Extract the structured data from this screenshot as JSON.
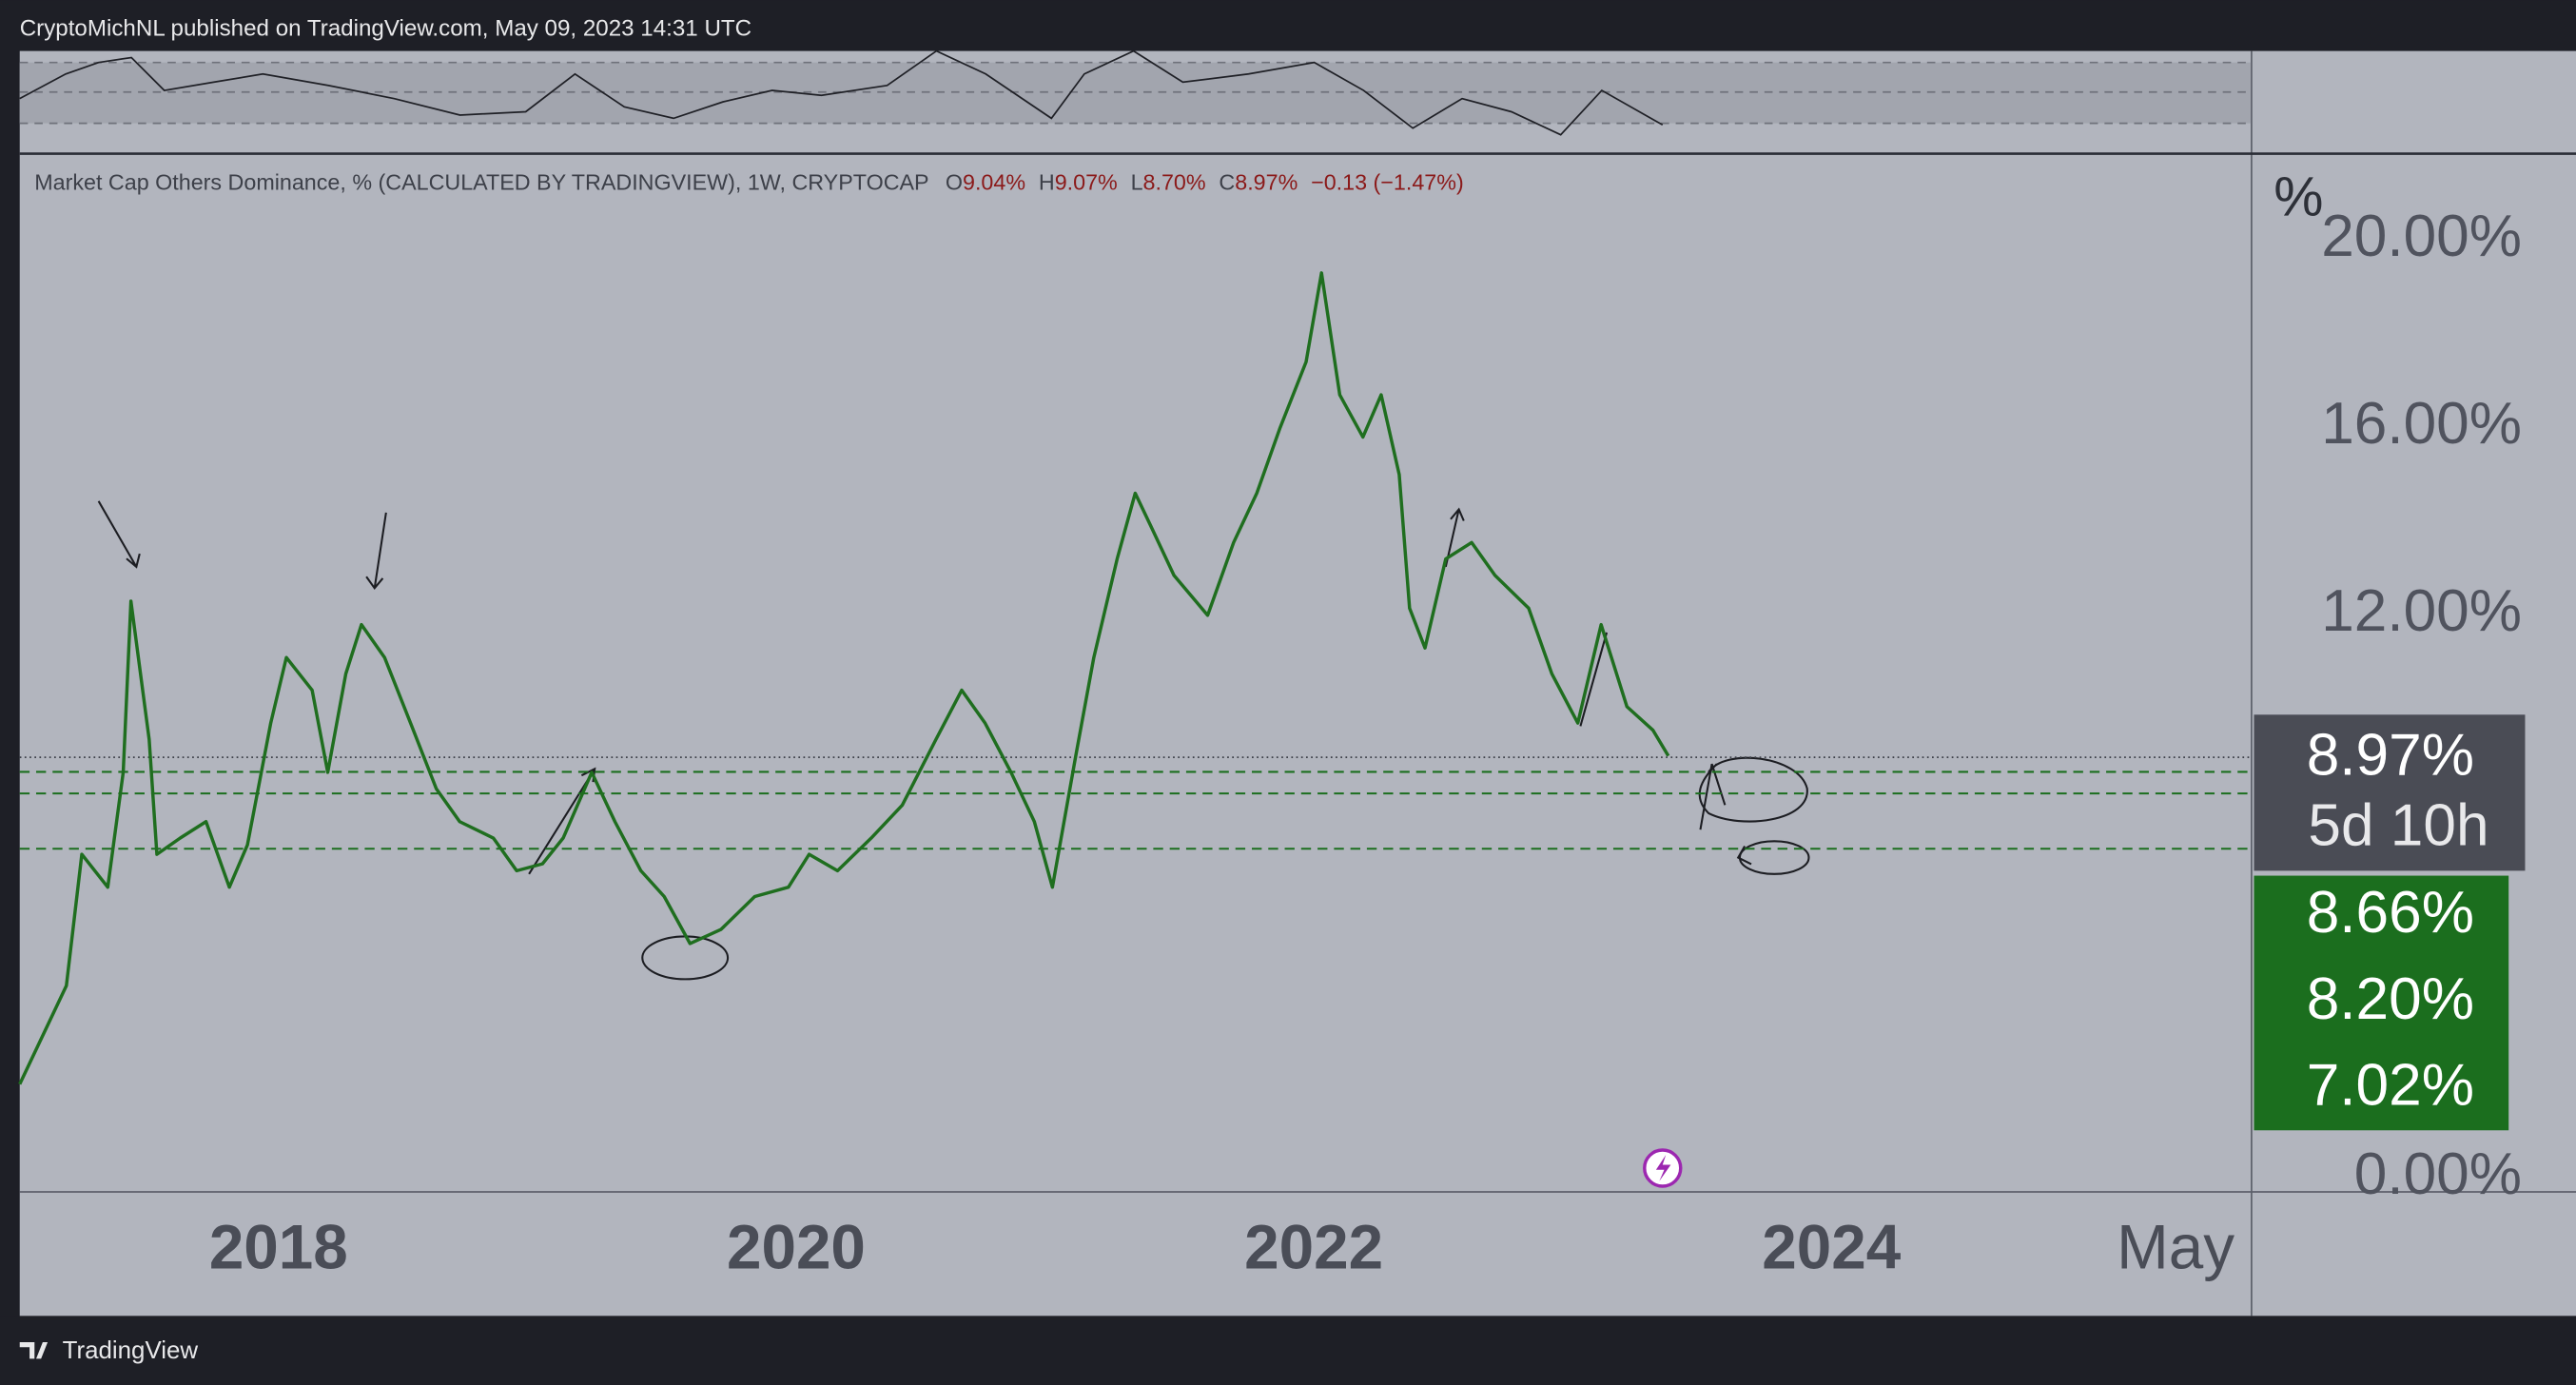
{
  "header": {
    "publisher": "CryptoMichNL published on TradingView.com, May 09, 2023 14:31 UTC"
  },
  "footer": {
    "brand": "TradingView"
  },
  "chart_data": {
    "type": "line",
    "title": "Market Cap Others Dominance, % (CALCULATED BY TRADINGVIEW), 1W, CRYPTOCAP",
    "ohlc": [
      {
        "key": "O",
        "value": "9.04%"
      },
      {
        "key": "H",
        "value": "9.07%"
      },
      {
        "key": "L",
        "value": "8.70%"
      },
      {
        "key": "C",
        "value": "8.97%"
      }
    ],
    "change": "−0.13 (−1.47%)",
    "unit": "%",
    "xlim": [
      2017,
      2025.62
    ],
    "xticks": [
      {
        "value": 2018,
        "label": "2018"
      },
      {
        "value": 2020,
        "label": "2020"
      },
      {
        "value": 2022,
        "label": "2022"
      },
      {
        "value": 2024,
        "label": "2024"
      },
      {
        "value": 2025.33,
        "label": "May"
      }
    ],
    "ylim": [
      -0.28,
      21.79
    ],
    "yticks": [
      {
        "value": 0,
        "label": "0.00%"
      },
      {
        "value": 12,
        "label": "12.00%"
      },
      {
        "value": 16,
        "label": "16.00%"
      },
      {
        "value": 20,
        "label": "20.00%"
      }
    ],
    "grid": false,
    "series": [
      {
        "name": "Others Dominance",
        "color": "#1f6e1f",
        "x": [
          2017.0,
          2017.18,
          2017.24,
          2017.34,
          2017.4,
          2017.43,
          2017.5,
          2017.53,
          2017.62,
          2017.72,
          2017.81,
          2017.88,
          2017.97,
          2018.03,
          2018.13,
          2018.19,
          2018.26,
          2018.32,
          2018.41,
          2018.51,
          2018.61,
          2018.7,
          2018.83,
          2018.92,
          2019.02,
          2019.1,
          2019.21,
          2019.3,
          2019.4,
          2019.49,
          2019.59,
          2019.71,
          2019.84,
          2019.97,
          2020.05,
          2020.16,
          2020.29,
          2020.41,
          2020.54,
          2020.64,
          2020.73,
          2020.83,
          2020.92,
          2020.99,
          2021.08,
          2021.15,
          2021.24,
          2021.31,
          2021.37,
          2021.46,
          2021.59,
          2021.69,
          2021.78,
          2021.87,
          2021.97,
          2022.03,
          2022.1,
          2022.19,
          2022.26,
          2022.33,
          2022.37,
          2022.43,
          2022.51,
          2022.61,
          2022.7,
          2022.83,
          2022.92,
          2023.02,
          2023.11,
          2023.21,
          2023.31,
          2023.37
        ],
        "values": [
          2.0,
          4.1,
          6.9,
          6.2,
          8.65,
          12.3,
          9.35,
          6.9,
          7.25,
          7.6,
          6.2,
          7.1,
          9.7,
          11.1,
          10.4,
          8.65,
          10.75,
          11.8,
          11.1,
          9.7,
          8.3,
          7.6,
          7.25,
          6.55,
          6.7,
          7.25,
          8.65,
          7.6,
          6.55,
          6.0,
          5.0,
          5.3,
          6.0,
          6.2,
          6.9,
          6.55,
          7.25,
          7.95,
          9.35,
          10.4,
          9.7,
          8.65,
          7.6,
          6.2,
          9.0,
          11.1,
          13.2,
          14.6,
          13.9,
          12.85,
          12.0,
          13.55,
          14.6,
          16.0,
          17.4,
          19.3,
          16.7,
          15.8,
          16.7,
          15.0,
          12.15,
          11.3,
          13.2,
          13.55,
          12.85,
          12.15,
          10.75,
          9.7,
          11.8,
          10.05,
          9.55,
          9.0
        ]
      }
    ],
    "last_price": {
      "value": 8.97,
      "label": "8.97%",
      "countdown": "5d 10h"
    },
    "levels": [
      {
        "value": 8.66,
        "label": "8.66%"
      },
      {
        "value": 8.2,
        "label": "8.20%"
      },
      {
        "value": 7.02,
        "label": "7.02%"
      }
    ],
    "level_color": "#1b6e1e"
  }
}
